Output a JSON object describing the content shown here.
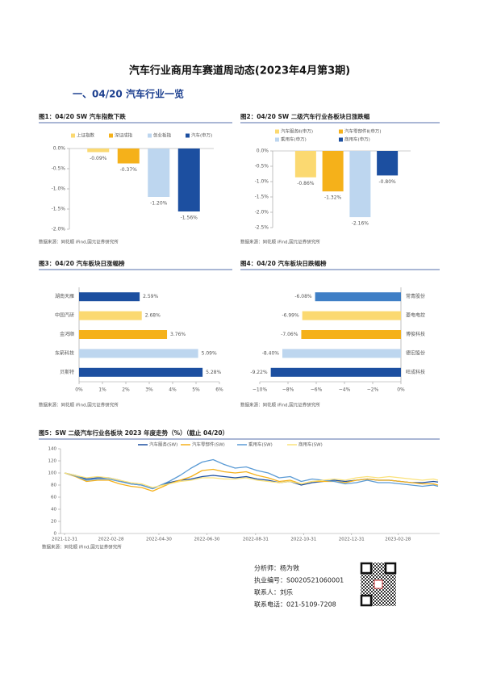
{
  "header": {
    "title": "汽车行业商用车赛道周动态(2023年4月第3期)",
    "section": "一、04/20 汽车行业一览"
  },
  "chart_data": [
    {
      "type": "bar",
      "title": "图1：04/20 SW 汽车指数下跌",
      "source": "数据来源：同花顺 iFind,国元证券研究所",
      "categories": [
        "上证指数",
        "深证成指",
        "创业板指",
        "汽车(申万)"
      ],
      "values": [
        -0.09,
        -0.37,
        -1.2,
        -1.56
      ],
      "value_labels": [
        "-0.09%",
        "-0.37%",
        "-1.20%",
        "-1.56%"
      ],
      "colors": [
        "#fbd971",
        "#f5b11a",
        "#bdd6ef",
        "#1c4fa0"
      ],
      "ylim": [
        -2.0,
        0.0
      ],
      "yticks": [
        {
          "value": 0.0,
          "label": "0.0%"
        },
        {
          "value": -0.5,
          "label": "-0.5%"
        },
        {
          "value": -1.0,
          "label": "-1.0%"
        },
        {
          "value": -1.5,
          "label": "-1.5%"
        },
        {
          "value": -2.0,
          "label": "-2.0%"
        }
      ]
    },
    {
      "type": "bar",
      "title": "图2：04/20 SW 二级汽车行业各板块日涨跌幅",
      "source": "数据来源：同花顺 iFind,国元证券研究所",
      "categories": [
        "汽车服务Ⅱ(申万)",
        "汽车零部件Ⅱ(申万)",
        "乘用车(申万)",
        "商用车(申万)"
      ],
      "values": [
        -0.86,
        -1.32,
        -2.16,
        -0.8
      ],
      "value_labels": [
        "-0.86%",
        "-1.32%",
        "-2.16%",
        "-0.80%"
      ],
      "colors": [
        "#fbd971",
        "#f5b11a",
        "#bdd6ef",
        "#1c4fa0"
      ],
      "ylim": [
        -2.5,
        0.0
      ],
      "yticks": [
        {
          "value": 0.0,
          "label": "0.0%"
        },
        {
          "value": -0.5,
          "label": "-0.5%"
        },
        {
          "value": -1.0,
          "label": "-1.0%"
        },
        {
          "value": -1.5,
          "label": "-1.5%"
        },
        {
          "value": -2.0,
          "label": "-2.0%"
        },
        {
          "value": -2.5,
          "label": "-2.5%"
        }
      ]
    },
    {
      "type": "barh",
      "title": "图3：04/20 汽车板块日涨幅榜",
      "source": "数据来源：同花顺 iFind,国元证券研究所",
      "categories": [
        "湖南天雁",
        "中国汽研",
        "金鸿顺",
        "东箭科技",
        "贝斯特"
      ],
      "values": [
        2.59,
        2.68,
        3.76,
        5.09,
        5.28
      ],
      "value_labels": [
        "2.59%",
        "2.68%",
        "3.76%",
        "5.09%",
        "5.28%"
      ],
      "colors": [
        "#1c4fa0",
        "#fbd971",
        "#f5b11a",
        "#bdd6ef",
        "#1c4fa0"
      ],
      "xlim": [
        0,
        6
      ],
      "xticks": [
        {
          "value": 0,
          "label": "0%"
        },
        {
          "value": 1,
          "label": "1%"
        },
        {
          "value": 2,
          "label": "2%"
        },
        {
          "value": 3,
          "label": "3%"
        },
        {
          "value": 4,
          "label": "4%"
        },
        {
          "value": 5,
          "label": "5%"
        },
        {
          "value": 6,
          "label": "6%"
        }
      ]
    },
    {
      "type": "barh",
      "title": "图4：04/20 汽车板块日跌幅榜",
      "source": "数据来源：同花顺 iFind,国元证券研究所",
      "categories": [
        "常青股份",
        "菱电电控",
        "博俊科技",
        "德宏股份",
        "旺成科技"
      ],
      "values": [
        -6.08,
        -6.99,
        -7.06,
        -8.4,
        -9.22
      ],
      "value_labels": [
        "-6.08%",
        "-6.99%",
        "-7.06%",
        "-8.40%",
        "-9.22%"
      ],
      "colors": [
        "#3f7fc6",
        "#fbd971",
        "#f5b11a",
        "#bdd6ef",
        "#1c4fa0"
      ],
      "xlim": [
        -10,
        0
      ],
      "xticks": [
        {
          "value": -10,
          "label": "−10%"
        },
        {
          "value": -8,
          "label": "−8%"
        },
        {
          "value": -6,
          "label": "−6%"
        },
        {
          "value": -4,
          "label": "−4%"
        },
        {
          "value": -2,
          "label": "−2%"
        },
        {
          "value": 0,
          "label": "0%"
        }
      ]
    },
    {
      "type": "line",
      "title": "图5：SW 二级汽车行业各板块 2023 年度走势（%）（截止 04/20）",
      "source": "数据来源：同花顺 iFind,国元证券研究所",
      "x": [
        "2021-12-31",
        "2022-01-14",
        "2022-01-28",
        "2022-02-11",
        "2022-02-25",
        "2022-03-11",
        "2022-03-25",
        "2022-04-08",
        "2022-04-22",
        "2022-04-29",
        "2022-05-13",
        "2022-05-27",
        "2022-06-10",
        "2022-06-24",
        "2022-07-08",
        "2022-07-22",
        "2022-08-05",
        "2022-08-19",
        "2022-09-02",
        "2022-09-16",
        "2022-09-30",
        "2022-10-14",
        "2022-10-28",
        "2022-11-11",
        "2022-11-25",
        "2022-12-09",
        "2022-12-23",
        "2023-01-06",
        "2023-01-20",
        "2023-02-03",
        "2023-02-17",
        "2023-03-03",
        "2023-03-17",
        "2023-03-31",
        "2023-04-14",
        "2023-04-20"
      ],
      "series": [
        {
          "name": "汽车服务(SW)",
          "color": "#1c4fa0",
          "values": [
            100,
            96,
            90,
            92,
            92,
            88,
            82,
            80,
            74,
            78,
            84,
            88,
            90,
            94,
            96,
            94,
            92,
            94,
            90,
            88,
            84,
            86,
            80,
            84,
            86,
            88,
            86,
            88,
            90,
            88,
            88,
            86,
            84,
            84,
            86,
            85
          ]
        },
        {
          "name": "汽车零部件(SW)",
          "color": "#f5b11a",
          "values": [
            100,
            94,
            86,
            88,
            88,
            82,
            78,
            76,
            70,
            74,
            82,
            88,
            94,
            104,
            106,
            102,
            100,
            102,
            96,
            92,
            86,
            88,
            82,
            86,
            86,
            86,
            84,
            88,
            90,
            88,
            88,
            86,
            84,
            82,
            82,
            80
          ]
        },
        {
          "name": "乘用车(SW)",
          "color": "#5b9bd5",
          "values": [
            100,
            95,
            88,
            90,
            90,
            86,
            82,
            80,
            74,
            78,
            86,
            96,
            108,
            118,
            122,
            114,
            108,
            110,
            104,
            100,
            92,
            94,
            86,
            90,
            88,
            86,
            82,
            84,
            88,
            84,
            84,
            82,
            80,
            78,
            80,
            78
          ]
        },
        {
          "name": "商用车(SW)",
          "color": "#fbe27a",
          "values": [
            100,
            96,
            92,
            94,
            92,
            88,
            84,
            82,
            76,
            78,
            82,
            86,
            88,
            92,
            92,
            90,
            90,
            92,
            88,
            86,
            84,
            86,
            82,
            86,
            88,
            90,
            88,
            92,
            94,
            92,
            94,
            92,
            90,
            88,
            90,
            88
          ]
        }
      ],
      "xlim": [
        "2021-12-31",
        "2023-04-20"
      ],
      "xticks": [
        "2021-12-31",
        "2022-02-28",
        "2022-04-30",
        "2022-06-30",
        "2022-08-31",
        "2022-10-31",
        "2022-12-31",
        "2023-02-28"
      ],
      "ylim": [
        0,
        140
      ],
      "yticks": [
        0,
        20,
        40,
        60,
        80,
        100,
        120,
        140
      ]
    }
  ],
  "footer": {
    "analyst": "分析师：杨为敩",
    "license": "执业编号：S0020521060001",
    "contact": "联系人：刘乐",
    "phone": "联系电话：021-5109-7208"
  }
}
